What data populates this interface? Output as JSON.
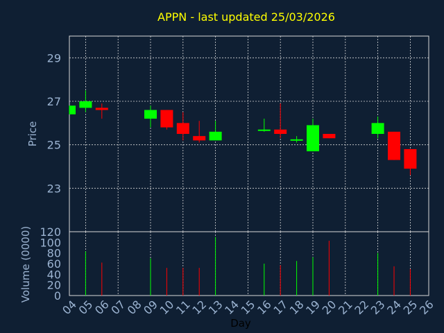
{
  "chart_data": {
    "type": "candlestick",
    "title": "APPN - last updated 25/03/2026",
    "xlabel": "Day",
    "x_ticks": [
      "04",
      "05",
      "06",
      "07",
      "08",
      "09",
      "10",
      "11",
      "12",
      "13",
      "14",
      "15",
      "16",
      "17",
      "18",
      "19",
      "20",
      "21",
      "22",
      "23",
      "24",
      "25",
      "26"
    ],
    "price_panel": {
      "ylabel": "Price",
      "ylim": [
        21.0,
        30.0
      ],
      "yticks": [
        23,
        25,
        27,
        29
      ],
      "grid": true
    },
    "volume_panel": {
      "ylabel": "Volume (0000)",
      "ylim": [
        0,
        120
      ],
      "yticks": [
        0,
        20,
        40,
        60,
        80,
        100,
        120
      ]
    },
    "colors": {
      "up": "#00ff00",
      "down": "#ff0000",
      "title": "#ffff00",
      "background": "#0f1f33",
      "axis_text": "#9bb3d1"
    },
    "candles": [
      {
        "day": "04",
        "open": 26.4,
        "high": 26.8,
        "low": 26.4,
        "close": 26.8,
        "volume": 0
      },
      {
        "day": "05",
        "open": 26.7,
        "high": 27.5,
        "low": 26.5,
        "close": 27.0,
        "volume": 83
      },
      {
        "day": "06",
        "open": 26.7,
        "high": 26.9,
        "low": 26.2,
        "close": 26.6,
        "volume": 62
      },
      {
        "day": "09",
        "open": 26.2,
        "high": 26.8,
        "low": 25.8,
        "close": 26.6,
        "volume": 70
      },
      {
        "day": "10",
        "open": 26.6,
        "high": 26.6,
        "low": 25.7,
        "close": 25.8,
        "volume": 52
      },
      {
        "day": "11",
        "open": 26.0,
        "high": 26.5,
        "low": 25.2,
        "close": 25.5,
        "volume": 52
      },
      {
        "day": "12",
        "open": 25.4,
        "high": 26.1,
        "low": 25.1,
        "close": 25.2,
        "volume": 52
      },
      {
        "day": "13",
        "open": 25.2,
        "high": 26.1,
        "low": 25.2,
        "close": 25.6,
        "volume": 110
      },
      {
        "day": "16",
        "open": 25.65,
        "high": 26.2,
        "low": 25.6,
        "close": 25.7,
        "volume": 60
      },
      {
        "day": "17",
        "open": 25.7,
        "high": 26.9,
        "low": 25.3,
        "close": 25.5,
        "volume": 57
      },
      {
        "day": "18",
        "open": 25.2,
        "high": 25.4,
        "low": 25.1,
        "close": 25.25,
        "volume": 65
      },
      {
        "day": "19",
        "open": 24.7,
        "high": 26.2,
        "low": 24.7,
        "close": 25.9,
        "volume": 72
      },
      {
        "day": "20",
        "open": 25.5,
        "high": 25.5,
        "low": 25.3,
        "close": 25.3,
        "volume": 103
      },
      {
        "day": "23",
        "open": 25.5,
        "high": 26.3,
        "low": 25.3,
        "close": 26.0,
        "volume": 80
      },
      {
        "day": "24",
        "open": 25.6,
        "high": 25.6,
        "low": 24.3,
        "close": 24.3,
        "volume": 55
      },
      {
        "day": "25",
        "open": 24.8,
        "high": 24.8,
        "low": 23.6,
        "close": 23.9,
        "volume": 50
      }
    ]
  }
}
